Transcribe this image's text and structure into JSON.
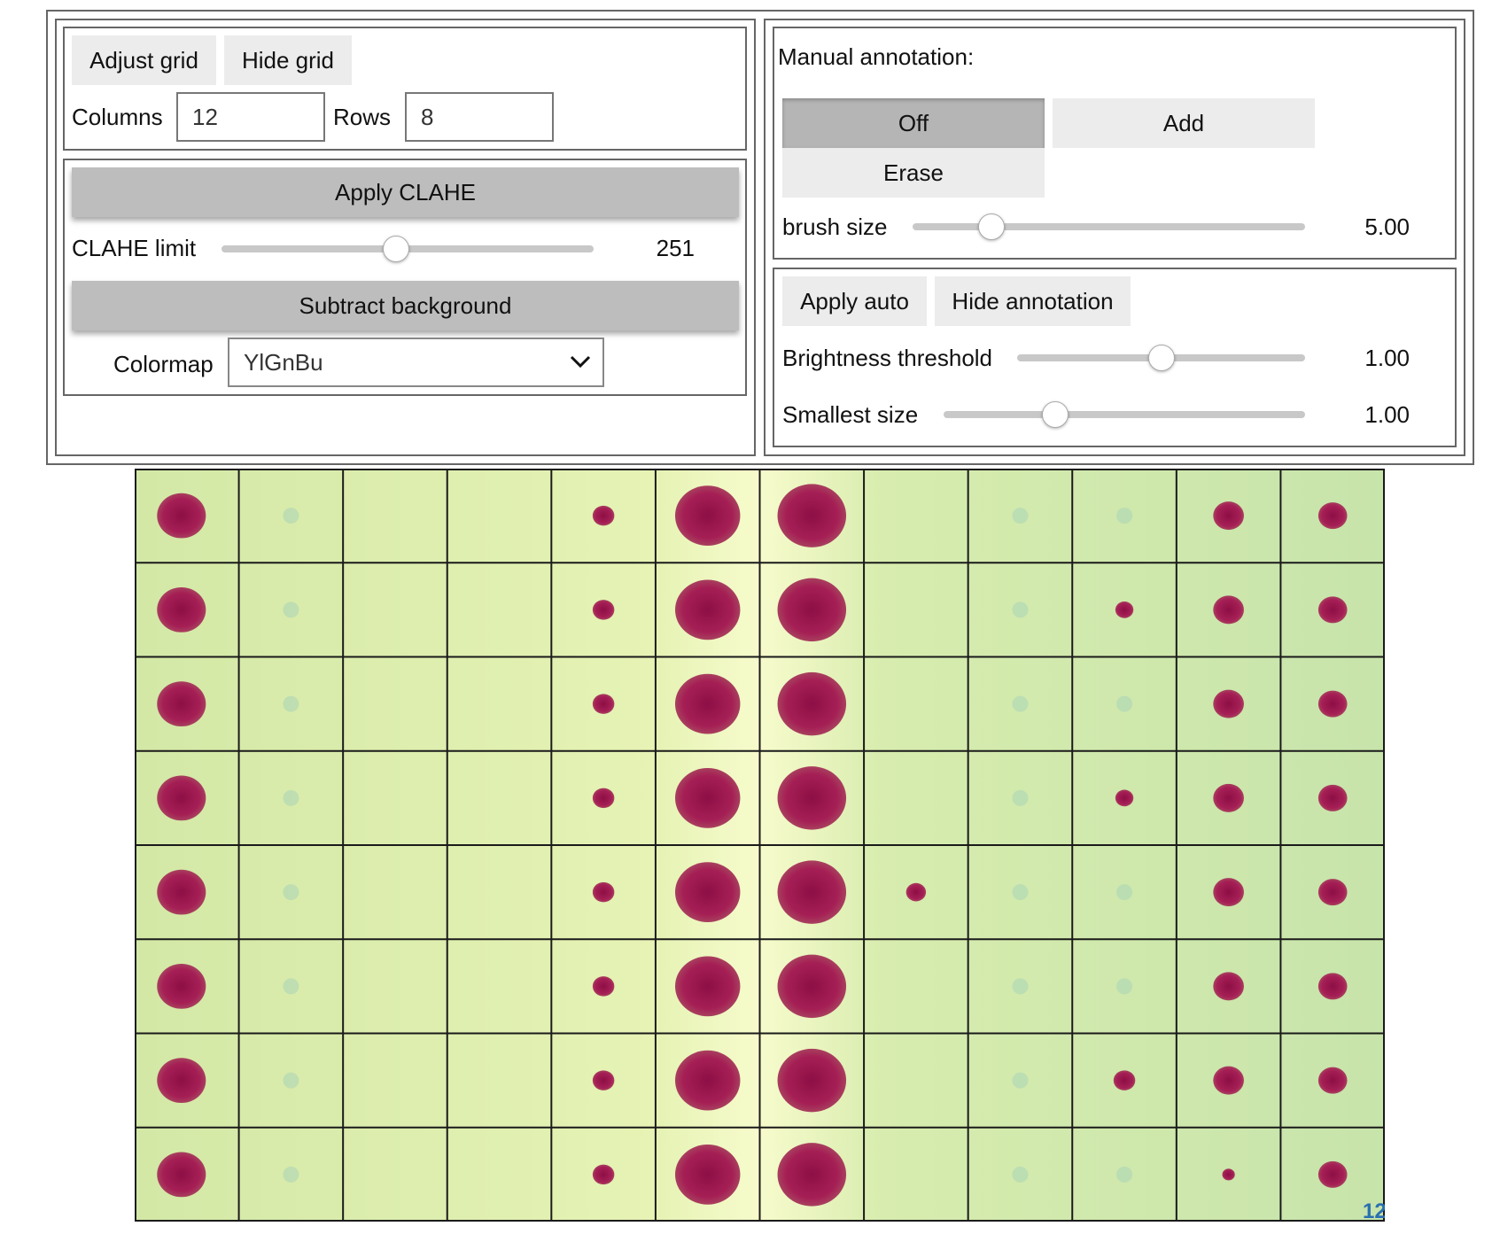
{
  "grid_panel": {
    "adjust_grid_label": "Adjust grid",
    "hide_grid_label": "Hide grid",
    "columns_label": "Columns",
    "columns_value": "12",
    "rows_label": "Rows",
    "rows_value": "8"
  },
  "clahe_panel": {
    "apply_clahe_label": "Apply CLAHE",
    "clahe_limit_label": "CLAHE limit",
    "clahe_limit_value": "251",
    "clahe_limit_fraction": 0.47,
    "subtract_background_label": "Subtract background",
    "colormap_label": "Colormap",
    "colormap_selected": "YlGnBu"
  },
  "annotation_panel": {
    "title": "Manual annotation:",
    "modes": [
      {
        "label": "Off",
        "selected": true
      },
      {
        "label": "Add",
        "selected": false
      },
      {
        "label": "Erase",
        "selected": false
      }
    ],
    "brush_size_label": "brush size",
    "brush_size_value": "5.00",
    "brush_size_fraction": 0.2
  },
  "auto_panel": {
    "apply_auto_label": "Apply auto",
    "hide_annotation_label": "Hide annotation",
    "brightness_threshold_label": "Brightness threshold",
    "brightness_threshold_value": "1.00",
    "brightness_threshold_fraction": 0.5,
    "smallest_size_label": "Smallest size",
    "smallest_size_value": "1.00",
    "smallest_size_fraction": 0.31
  },
  "plate_image": {
    "columns": 12,
    "rows": 8,
    "background_color": "#d4e9a8",
    "spot_color": "#a01f4e",
    "grid_line_color": "#1a1a1a",
    "corner_mark": "12"
  }
}
